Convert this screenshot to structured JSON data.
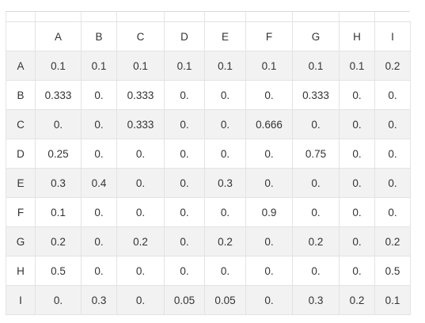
{
  "matrix": {
    "columns": [
      "A",
      "B",
      "C",
      "D",
      "E",
      "F",
      "G",
      "H",
      "I"
    ],
    "rows": [
      {
        "label": "A",
        "cells": [
          "0.1",
          "0.1",
          "0.1",
          "0.1",
          "0.1",
          "0.1",
          "0.1",
          "0.1",
          "0.2"
        ]
      },
      {
        "label": "B",
        "cells": [
          "0.333",
          "0.",
          "0.333",
          "0.",
          "0.",
          "0.",
          "0.333",
          "0.",
          "0."
        ]
      },
      {
        "label": "C",
        "cells": [
          "0.",
          "0.",
          "0.333",
          "0.",
          "0.",
          "0.666",
          "0.",
          "0.",
          "0."
        ]
      },
      {
        "label": "D",
        "cells": [
          "0.25",
          "0.",
          "0.",
          "0.",
          "0.",
          "0.",
          "0.75",
          "0.",
          "0."
        ]
      },
      {
        "label": "E",
        "cells": [
          "0.3",
          "0.4",
          "0.",
          "0.",
          "0.3",
          "0.",
          "0.",
          "0.",
          "0."
        ]
      },
      {
        "label": "F",
        "cells": [
          "0.1",
          "0.",
          "0.",
          "0.",
          "0.",
          "0.9",
          "0.",
          "0.",
          "0."
        ]
      },
      {
        "label": "G",
        "cells": [
          "0.2",
          "0.",
          "0.2",
          "0.",
          "0.2",
          "0.",
          "0.2",
          "0.",
          "0.2"
        ]
      },
      {
        "label": "H",
        "cells": [
          "0.5",
          "0.",
          "0.",
          "0.",
          "0.",
          "0.",
          "0.",
          "0.",
          "0.5"
        ]
      },
      {
        "label": "I",
        "cells": [
          "0.",
          "0.3",
          "0.",
          "0.05",
          "0.05",
          "0.",
          "0.3",
          "0.2",
          "0.1"
        ]
      }
    ]
  }
}
